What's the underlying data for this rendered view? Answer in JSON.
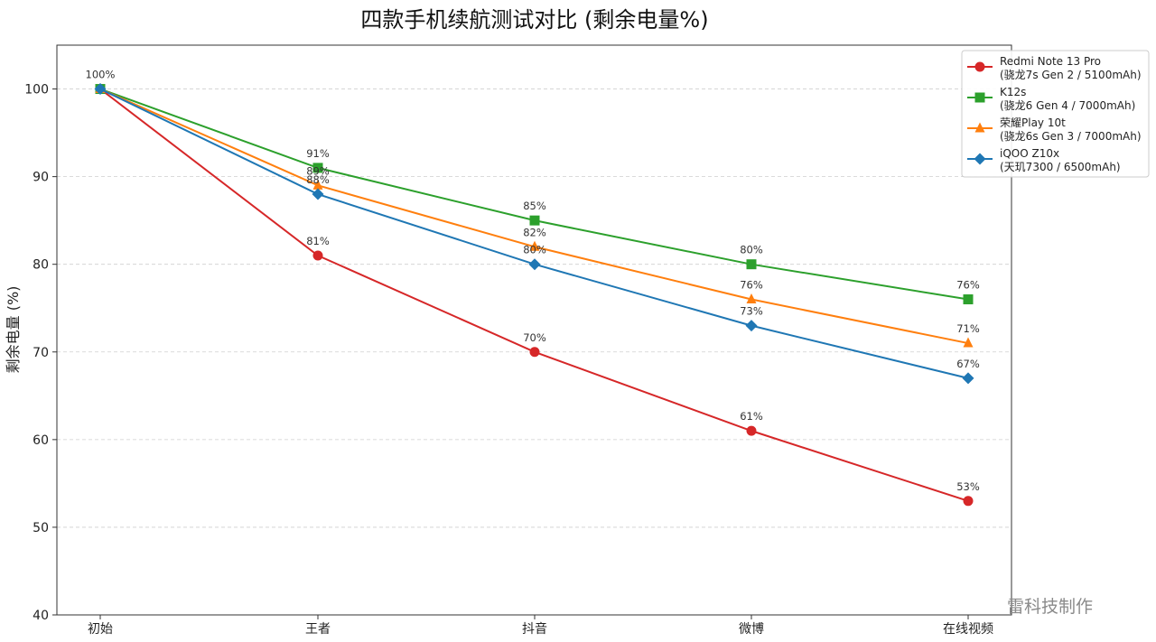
{
  "chart_data": {
    "type": "line",
    "title": "四款手机续航测试对比 (剩余电量%)",
    "xlabel": "",
    "ylabel": "剩余电量 (%)",
    "categories": [
      "初始",
      "王者",
      "抖音",
      "微博",
      "在线视频"
    ],
    "ylim": [
      40,
      105
    ],
    "yticks": [
      40,
      50,
      60,
      70,
      80,
      90,
      100
    ],
    "grid": "horizontal dashed",
    "legend_position": "top-right",
    "series": [
      {
        "name": "Redmi Note 13 Pro\n(骁龙7s Gen 2 / 5100mAh)",
        "values": [
          100,
          81,
          70,
          61,
          53
        ],
        "color": "#d62728",
        "marker": "circle",
        "labels": [
          "100%",
          "81%",
          "70%",
          "61%",
          "53%"
        ]
      },
      {
        "name": "K12s\n(骁龙6 Gen 4 / 7000mAh)",
        "values": [
          100,
          91,
          85,
          80,
          76
        ],
        "color": "#2ca02c",
        "marker": "square",
        "labels": [
          "",
          "91%",
          "85%",
          "80%",
          "76%"
        ]
      },
      {
        "name": "荣耀Play 10t\n(骁龙6s Gen 3 / 7000mAh)",
        "values": [
          100,
          89,
          82,
          76,
          71
        ],
        "color": "#ff7f0e",
        "marker": "triangle",
        "labels": [
          "",
          "89%",
          "82%",
          "76%",
          "71%"
        ]
      },
      {
        "name": "iQOO Z10x\n(天玑7300 / 6500mAh)",
        "values": [
          100,
          88,
          80,
          73,
          67
        ],
        "color": "#1f77b4",
        "marker": "diamond",
        "labels": [
          "",
          "88%",
          "80%",
          "73%",
          "67%"
        ]
      }
    ]
  },
  "watermark": "雷科技制作"
}
